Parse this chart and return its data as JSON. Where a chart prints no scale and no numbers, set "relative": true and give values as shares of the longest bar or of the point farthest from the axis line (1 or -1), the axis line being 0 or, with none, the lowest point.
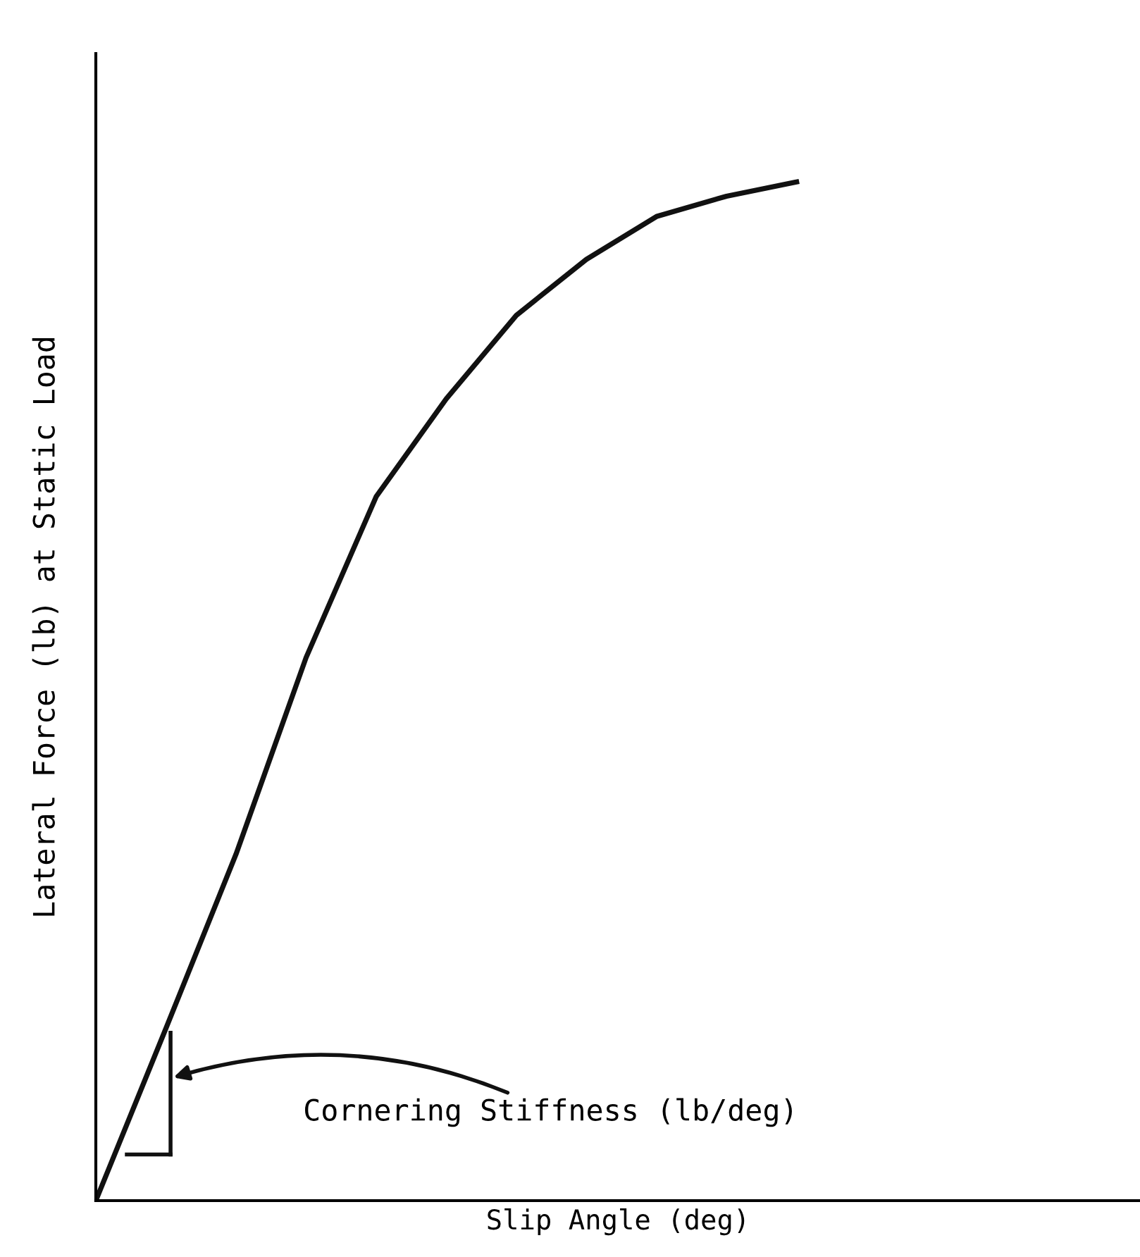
{
  "chart_data": {
    "type": "line",
    "relative": true,
    "xlabel": "Slip Angle (deg)",
    "ylabel": "Lateral Force (lb) at Static Load",
    "categories": [
      null,
      null,
      null,
      null,
      null,
      null,
      null,
      null,
      null,
      null,
      null
    ],
    "series": [
      {
        "color": "#111111",
        "values": [
          0,
          0.169,
          0.34,
          0.533,
          0.691,
          0.787,
          0.869,
          0.924,
          0.966,
          0.986,
          1
        ]
      }
    ],
    "annotations": [
      "Cornering Stiffness (lb/deg)"
    ],
    "marker": "none",
    "line_style": "solid"
  }
}
